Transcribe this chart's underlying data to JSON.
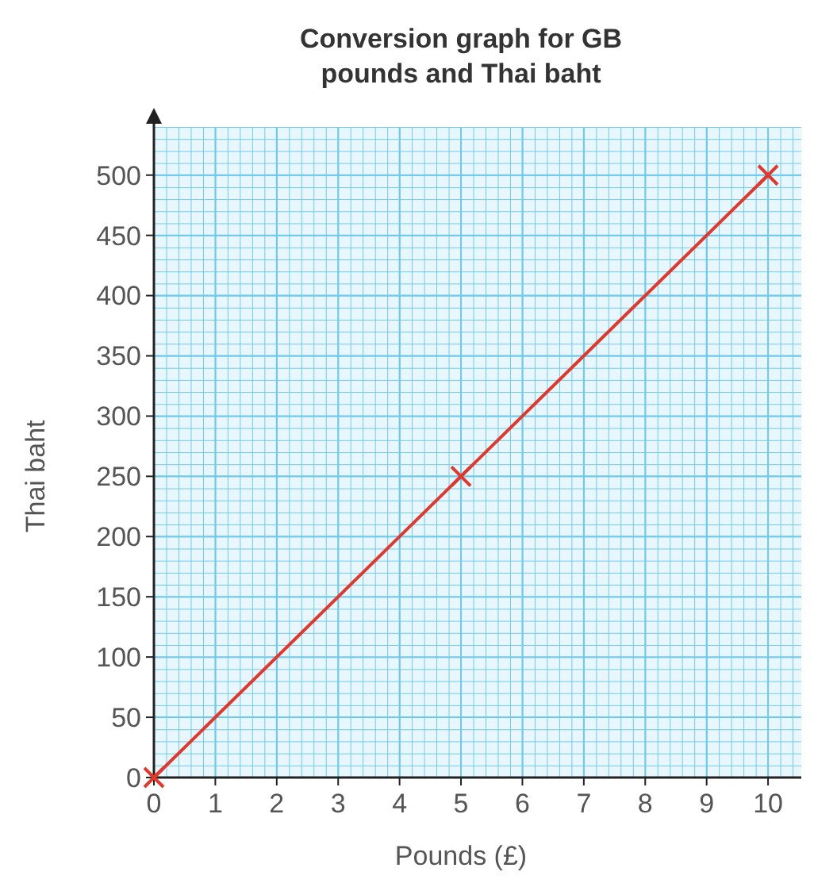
{
  "chart_data": {
    "type": "line",
    "title": "Conversion graph for GB pounds and Thai baht",
    "xlabel": "Pounds (£)",
    "ylabel": "Thai baht",
    "x": [
      0,
      5,
      10
    ],
    "series": [
      {
        "color": "#e2372b",
        "values": [
          0,
          250,
          500
        ]
      }
    ],
    "xlim": [
      0,
      10.8
    ],
    "xticks": [
      0,
      1,
      2,
      3,
      4,
      5,
      6,
      7,
      8,
      9,
      10
    ],
    "ylim": [
      0,
      540
    ],
    "yticks": [
      0,
      50,
      100,
      150,
      200,
      250,
      300,
      350,
      400,
      450,
      500
    ],
    "grid": true,
    "marker": "cross",
    "line_style": "solid"
  }
}
